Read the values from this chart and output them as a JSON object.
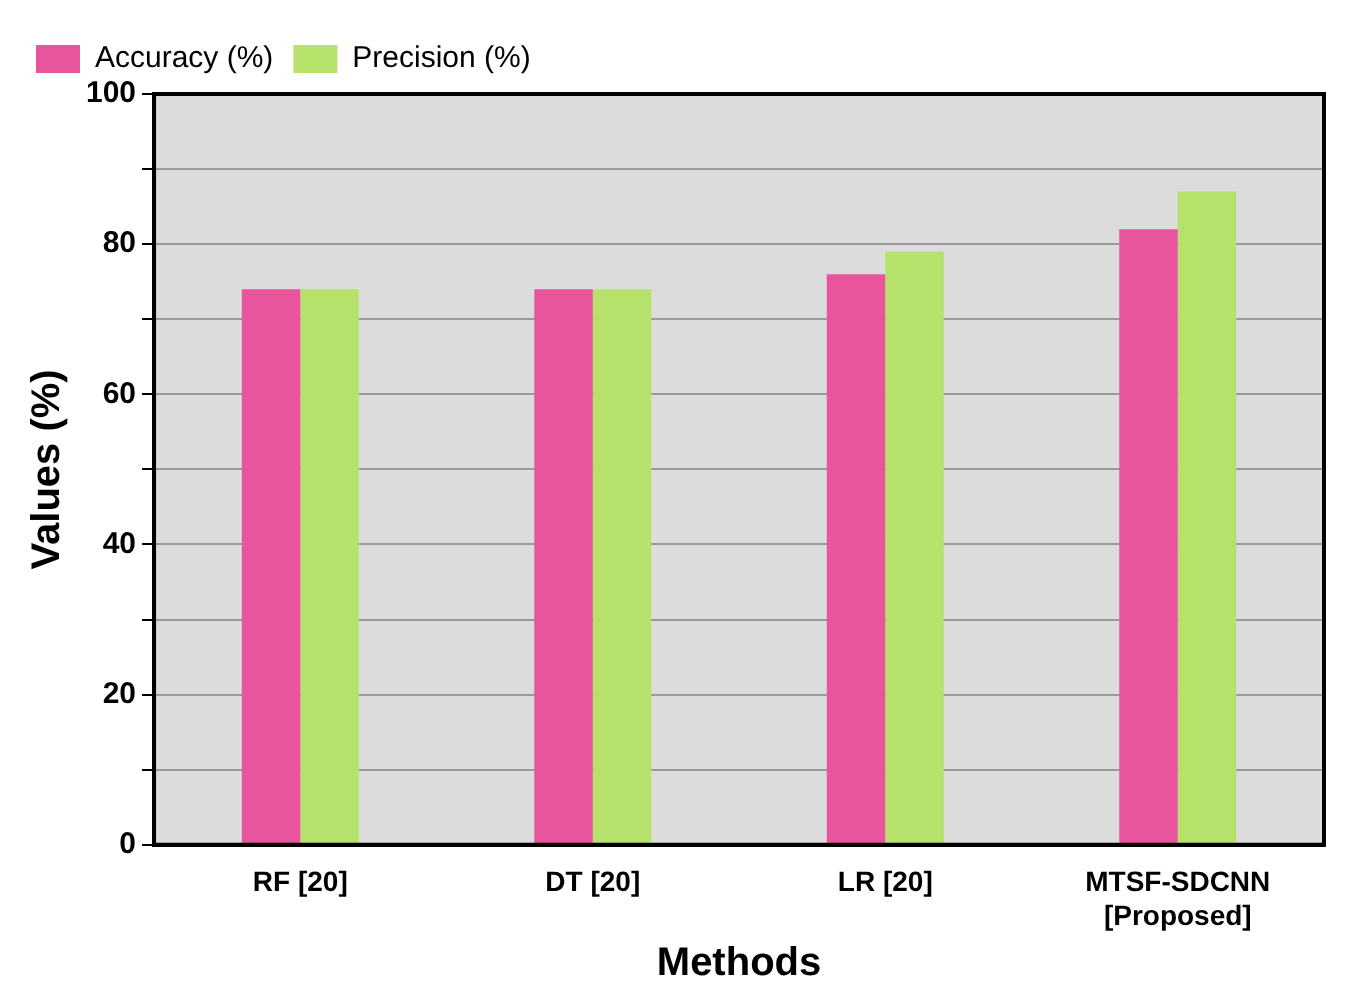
{
  "chart_data": {
    "type": "bar",
    "xlabel": "Methods",
    "ylabel": "Values (%)",
    "categories": [
      "RF [20]",
      "DT [20]",
      "LR [20]",
      "MTSF-SDCNN\n[Proposed]"
    ],
    "series": [
      {
        "name": "Accuracy (%)",
        "color": "#e8559c",
        "values": [
          74,
          74,
          76,
          82
        ]
      },
      {
        "name": "Precision (%)",
        "color": "#b6e26c",
        "values": [
          74,
          74,
          79,
          87
        ]
      }
    ],
    "ylim": [
      0,
      100
    ],
    "yticks": [
      0,
      {
        "value": 10,
        "label": null
      },
      20,
      {
        "value": 30,
        "label": null
      },
      40,
      {
        "value": 50,
        "label": null
      },
      60,
      {
        "value": 70,
        "label": null
      },
      80,
      {
        "value": 90,
        "label": null
      },
      100
    ],
    "grid": "y",
    "legend": "top left"
  }
}
